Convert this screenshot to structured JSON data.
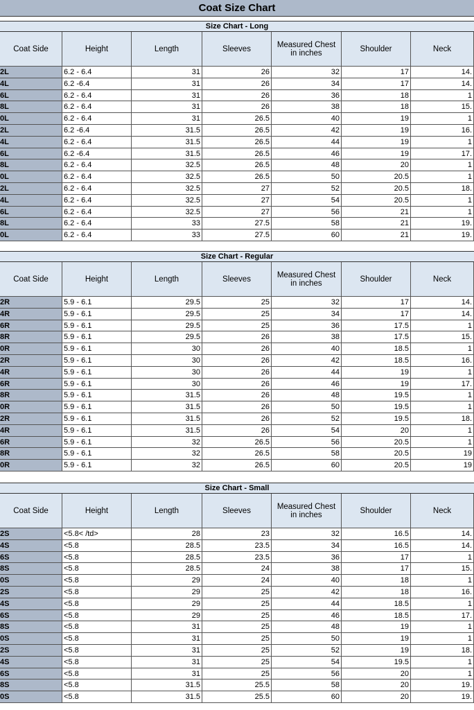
{
  "title": "Coat Size Chart",
  "sections": [
    {
      "title": "Size Chart - Long",
      "headers": [
        "Coat Side",
        "Height",
        "Length",
        "Sleeves",
        "Measured Chest in inches",
        "Shoulder",
        "Neck"
      ],
      "rows": [
        [
          "2L",
          "6.2 - 6.4",
          31,
          26,
          32,
          17,
          "14."
        ],
        [
          "4L",
          "6.2 -6.4",
          31,
          26,
          34,
          17,
          "14."
        ],
        [
          "6L",
          "6.2 - 6.4",
          31,
          26,
          36,
          18,
          1
        ],
        [
          "8L",
          "6.2 - 6.4",
          31,
          26,
          38,
          18,
          "15."
        ],
        [
          "0L",
          "6.2 - 6.4",
          31,
          26.5,
          40,
          19,
          1
        ],
        [
          "2L",
          "6.2 -6.4",
          31.5,
          26.5,
          42,
          19,
          "16."
        ],
        [
          "4L",
          "6.2 - 6.4",
          31.5,
          26.5,
          44,
          19,
          1
        ],
        [
          "6L",
          "6.2 -6.4",
          31.5,
          26.5,
          46,
          19,
          "17."
        ],
        [
          "8L",
          "6.2 - 6.4",
          32.5,
          26.5,
          48,
          20,
          1
        ],
        [
          "0L",
          "6.2 - 6.4",
          32.5,
          26.5,
          50,
          20.5,
          1
        ],
        [
          "2L",
          "6.2 - 6.4",
          32.5,
          27,
          52,
          20.5,
          "18."
        ],
        [
          "4L",
          "6.2 - 6.4",
          32.5,
          27,
          54,
          20.5,
          1
        ],
        [
          "6L",
          "6.2 - 6.4",
          32.5,
          27,
          56,
          21,
          1
        ],
        [
          "8L",
          "6.2 - 6.4",
          33,
          27.5,
          58,
          21,
          "19."
        ],
        [
          "0L",
          "6.2 - 6.4",
          33,
          27.5,
          60,
          21,
          "19."
        ]
      ]
    },
    {
      "title": "Size Chart - Regular",
      "headers": [
        "Coat Side",
        "Height",
        "Length",
        "Sleeves",
        "Measured Chest in inches",
        "Shoulder",
        "Neck"
      ],
      "rows": [
        [
          "2R",
          "5.9 - 6.1",
          29.5,
          25,
          32,
          17,
          "14."
        ],
        [
          "4R",
          "5.9 - 6.1",
          29.5,
          25,
          34,
          17,
          "14."
        ],
        [
          "6R",
          "5.9 - 6.1",
          29.5,
          25,
          36,
          17.5,
          1
        ],
        [
          "8R",
          "5.9 - 6.1",
          29.5,
          26,
          38,
          17.5,
          "15."
        ],
        [
          "0R",
          "5.9 - 6.1",
          30,
          26,
          40,
          18.5,
          1
        ],
        [
          "2R",
          "5.9 - 6.1",
          30,
          26,
          42,
          18.5,
          "16."
        ],
        [
          "4R",
          "5.9 - 6.1",
          30,
          26,
          44,
          19,
          1
        ],
        [
          "6R",
          "5.9 - 6.1",
          30,
          26,
          46,
          19,
          "17."
        ],
        [
          "8R",
          "5.9 - 6.1",
          31.5,
          26,
          48,
          19.5,
          1
        ],
        [
          "0R",
          "5.9 - 6.1",
          31.5,
          26,
          50,
          19.5,
          1
        ],
        [
          "2R",
          "5.9 - 6.1",
          31.5,
          26,
          52,
          19.5,
          "18."
        ],
        [
          "4R",
          "5.9 - 6.1",
          31.5,
          26,
          54,
          20,
          1
        ],
        [
          "6R",
          "5.9 - 6.1",
          32,
          26.5,
          56,
          20.5,
          1
        ],
        [
          "8R",
          "5.9 - 6.1",
          32,
          26.5,
          58,
          20.5,
          19
        ],
        [
          "0R",
          "5.9 - 6.1",
          32,
          26.5,
          60,
          20.5,
          19
        ]
      ]
    },
    {
      "title": "Size Chart - Small",
      "headers": [
        "Coat Side",
        "Height",
        "Length",
        "Sleeves",
        "Measured Chest in inches",
        "Shoulder",
        "Neck"
      ],
      "rows": [
        [
          "2S",
          "<5.8< /td>",
          28,
          23,
          32,
          16.5,
          "14."
        ],
        [
          "4S",
          "<5.8",
          28.5,
          23.5,
          34,
          16.5,
          "14."
        ],
        [
          "6S",
          "<5.8",
          28.5,
          23.5,
          36,
          17,
          1
        ],
        [
          "8S",
          "<5.8",
          28.5,
          24,
          38,
          17,
          "15."
        ],
        [
          "0S",
          "<5.8",
          29,
          24,
          40,
          18,
          1
        ],
        [
          "2S",
          "<5.8",
          29,
          25,
          42,
          18,
          "16."
        ],
        [
          "4S",
          "<5.8",
          29,
          25,
          44,
          18.5,
          1
        ],
        [
          "6S",
          "<5.8",
          29,
          25,
          46,
          18.5,
          "17."
        ],
        [
          "8S",
          "<5.8",
          31,
          25,
          48,
          19,
          1
        ],
        [
          "0S",
          "<5.8",
          31,
          25,
          50,
          19,
          1
        ],
        [
          "2S",
          "<5.8",
          31,
          25,
          52,
          19,
          "18."
        ],
        [
          "4S",
          "<5.8",
          31,
          25,
          54,
          19.5,
          1
        ],
        [
          "6S",
          "<5.8",
          31,
          25,
          56,
          20,
          1
        ],
        [
          "8S",
          "<5.8",
          31.5,
          25.5,
          58,
          20,
          "19."
        ],
        [
          "0S",
          "<5.8",
          31.5,
          25.5,
          60,
          20,
          "19."
        ]
      ]
    }
  ]
}
